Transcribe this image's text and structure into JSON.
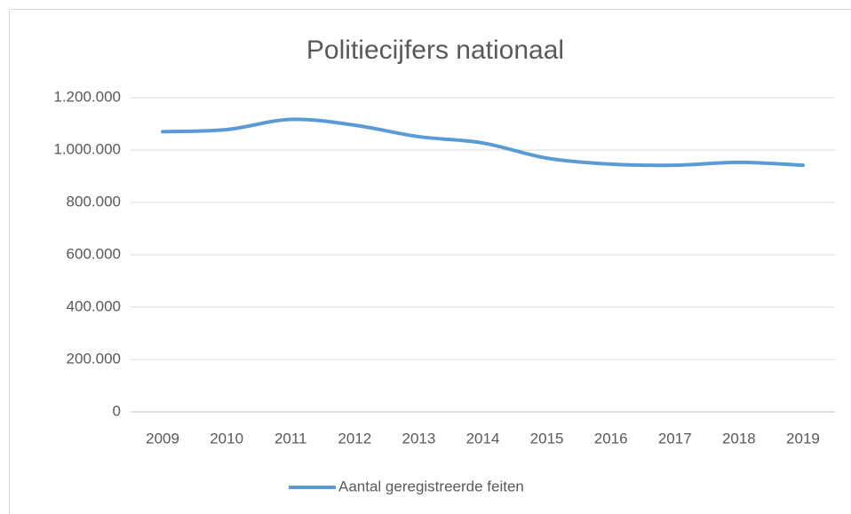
{
  "chart_data": {
    "type": "line",
    "title": "Politiecijfers nationaal",
    "categories": [
      "2009",
      "2010",
      "2011",
      "2012",
      "2013",
      "2014",
      "2015",
      "2016",
      "2017",
      "2018",
      "2019"
    ],
    "series": [
      {
        "name": "Aantal geregistreerde feiten",
        "color": "#5b9bd5",
        "values": [
          1070000,
          1078000,
          1117000,
          1095000,
          1051000,
          1027000,
          969000,
          946000,
          942000,
          953000,
          942000
        ]
      }
    ],
    "ylim": [
      0,
      1200000
    ],
    "yticks": [
      0,
      {
        "value": 200000,
        "label": "200.000"
      },
      {
        "value": 400000,
        "label": "400.000"
      },
      {
        "value": 600000,
        "label": "600.000"
      },
      {
        "value": 800000,
        "label": "800.000"
      },
      {
        "value": 1000000,
        "label": "1.000.000"
      },
      {
        "value": 1200000,
        "label": "1.200.000"
      }
    ],
    "grid": true,
    "legend": "bottom",
    "smooth": true
  }
}
